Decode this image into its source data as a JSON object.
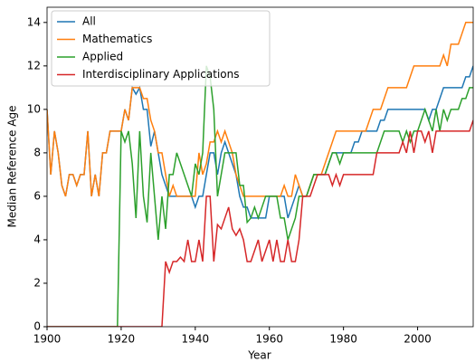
{
  "chart_data": {
    "type": "line",
    "xlabel": "Year",
    "ylabel": "Median Reference Age",
    "x": [
      1900,
      1901,
      1902,
      1903,
      1904,
      1905,
      1906,
      1907,
      1908,
      1909,
      1910,
      1911,
      1912,
      1913,
      1914,
      1915,
      1916,
      1917,
      1918,
      1919,
      1920,
      1921,
      1922,
      1923,
      1924,
      1925,
      1926,
      1927,
      1928,
      1929,
      1930,
      1931,
      1932,
      1933,
      1934,
      1935,
      1936,
      1937,
      1938,
      1939,
      1940,
      1941,
      1942,
      1943,
      1944,
      1945,
      1946,
      1947,
      1948,
      1949,
      1950,
      1951,
      1952,
      1953,
      1954,
      1955,
      1956,
      1957,
      1958,
      1959,
      1960,
      1961,
      1962,
      1963,
      1964,
      1965,
      1966,
      1967,
      1968,
      1969,
      1970,
      1971,
      1972,
      1973,
      1974,
      1975,
      1976,
      1977,
      1978,
      1979,
      1980,
      1981,
      1982,
      1983,
      1984,
      1985,
      1986,
      1987,
      1988,
      1989,
      1990,
      1991,
      1992,
      1993,
      1994,
      1995,
      1996,
      1997,
      1998,
      1999,
      2000,
      2001,
      2002,
      2003,
      2004,
      2005,
      2006,
      2007,
      2008,
      2009,
      2010,
      2011,
      2012,
      2013,
      2014,
      2015
    ],
    "series": [
      {
        "name": "All",
        "color": "#1f77b4",
        "values": [
          10,
          7,
          9,
          8,
          6.5,
          6,
          7,
          7,
          6.5,
          7,
          7,
          9,
          6,
          7,
          6,
          8,
          8,
          9,
          9,
          9,
          9,
          10,
          9.5,
          11,
          10.7,
          11,
          10,
          10,
          8.3,
          9,
          8,
          7,
          6.5,
          6,
          6,
          6,
          6,
          6,
          6,
          6,
          5.5,
          6,
          6,
          7,
          8,
          8,
          7,
          8,
          8.5,
          8,
          7.5,
          7,
          6,
          5.5,
          5.5,
          5,
          5,
          5,
          5,
          5,
          6,
          6,
          6,
          6,
          6,
          5,
          5.5,
          6,
          6.5,
          6,
          6,
          6.5,
          7,
          7,
          7,
          7,
          7.5,
          8,
          8,
          8,
          8,
          8,
          8,
          8.5,
          8.5,
          9,
          9,
          9,
          9,
          9,
          9.5,
          9.5,
          10,
          10,
          10,
          10,
          10,
          10,
          10,
          10,
          10,
          10,
          10,
          9.5,
          10,
          10,
          10.5,
          11,
          11,
          11,
          11,
          11,
          11,
          11.5,
          11.5,
          12
        ]
      },
      {
        "name": "Mathematics",
        "color": "#ff7f0e",
        "values": [
          10,
          7,
          9,
          8,
          6.5,
          6,
          7,
          7,
          6.5,
          7,
          7,
          9,
          6,
          7,
          6,
          8,
          8,
          9,
          9,
          9,
          9,
          10,
          9.5,
          11,
          11,
          11,
          10.5,
          10.5,
          9.5,
          9,
          8,
          8,
          7,
          6,
          6.5,
          6,
          6,
          6,
          6,
          6,
          6,
          8,
          7,
          7.5,
          8.5,
          8.5,
          9,
          8.5,
          9,
          8.5,
          8,
          7,
          6.5,
          6,
          6,
          6,
          6,
          6,
          6,
          6,
          6,
          6,
          6,
          6,
          6.5,
          6,
          6,
          7,
          6.5,
          6,
          6,
          6.5,
          7,
          7,
          7,
          7.5,
          8,
          8.5,
          9,
          9,
          9,
          9,
          9,
          9,
          9,
          9,
          9,
          9.5,
          10,
          10,
          10,
          10.5,
          11,
          11,
          11,
          11,
          11,
          11,
          11.5,
          12,
          12,
          12,
          12,
          12,
          12,
          12,
          12,
          12.5,
          12,
          13,
          13,
          13,
          13.5,
          14,
          14,
          14
        ]
      },
      {
        "name": "Applied",
        "color": "#2ca02c",
        "values": [
          0,
          0,
          0,
          0,
          0,
          0,
          0,
          0,
          0,
          0,
          0,
          0,
          0,
          0,
          0,
          0,
          0,
          0,
          0,
          0,
          9,
          8.5,
          9,
          7.5,
          5,
          9,
          6,
          4.8,
          8,
          6,
          4,
          6,
          4.5,
          7,
          7,
          8,
          7.5,
          7,
          6.5,
          6,
          7.5,
          7,
          8,
          12,
          11.5,
          10,
          6,
          7,
          8,
          8,
          8,
          8,
          6.5,
          6.5,
          4.8,
          5,
          5.5,
          5,
          5.5,
          6,
          6,
          6,
          6,
          5,
          5,
          4,
          4.5,
          5,
          6,
          6,
          6,
          6.5,
          7,
          7,
          7,
          7,
          7.5,
          8,
          8,
          7.5,
          8,
          8,
          8,
          8,
          8,
          8,
          8,
          8,
          8,
          8,
          8.5,
          9,
          9,
          9,
          9,
          9,
          8.5,
          9,
          8.5,
          9,
          9,
          9.5,
          10,
          9.5,
          9,
          10,
          9,
          10,
          9.5,
          10,
          10,
          10,
          10.5,
          10.5,
          11,
          11
        ]
      },
      {
        "name": "Interdisciplinary Applications",
        "color": "#d62728",
        "values": [
          0,
          0,
          0,
          0,
          0,
          0,
          0,
          0,
          0,
          0,
          0,
          0,
          0,
          0,
          0,
          0,
          0,
          0,
          0,
          0,
          0,
          0,
          0,
          0,
          0,
          0,
          0,
          0,
          0,
          0,
          0,
          0,
          3,
          2.5,
          3,
          3,
          3.2,
          3,
          4,
          3,
          3,
          4,
          3,
          6,
          6,
          3,
          4.7,
          4.5,
          5,
          5.5,
          4.5,
          4.2,
          4.5,
          4,
          3,
          3,
          3.5,
          4,
          3,
          3.5,
          4,
          3,
          4,
          3,
          3,
          4,
          3,
          3,
          4,
          6,
          6,
          6,
          6.5,
          7,
          7,
          7,
          7,
          6.5,
          7,
          6.5,
          7,
          7,
          7,
          7,
          7,
          7,
          7,
          7,
          7,
          8,
          8,
          8,
          8,
          8,
          8,
          8,
          8.5,
          8,
          9,
          8,
          9,
          9,
          8.5,
          9,
          8,
          9,
          9,
          9,
          9,
          9,
          9,
          9,
          9,
          9,
          9,
          9.5
        ]
      }
    ],
    "xlim": [
      1900,
      2015
    ],
    "ylim": [
      0,
      14.7
    ],
    "xticks": [
      1900,
      1920,
      1940,
      1960,
      1980,
      2000
    ],
    "yticks": [
      0,
      2,
      4,
      6,
      8,
      10,
      12,
      14
    ],
    "legend": "upper-left"
  }
}
